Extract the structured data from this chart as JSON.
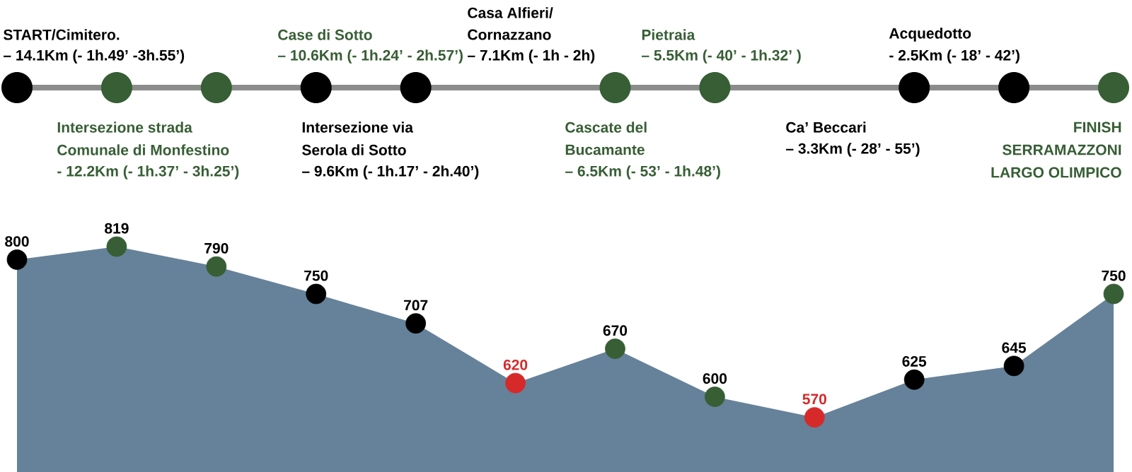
{
  "chart_data": {
    "type": "area",
    "categories": [
      null,
      null,
      null,
      null,
      null,
      null,
      null,
      null,
      null,
      null,
      null,
      null
    ],
    "values": [
      800,
      819,
      790,
      750,
      707,
      620,
      670,
      600,
      570,
      625,
      645,
      750
    ],
    "color": "#66829a",
    "colors": [
      "#000000",
      "#375e35",
      "#375e35",
      "#000000",
      "#000000",
      "#d62a2a",
      "#375e35",
      "#375e35",
      "#d62a2a",
      "#000000",
      "#000000",
      "#375e35"
    ],
    "marker": "circle",
    "data_labels": true,
    "annotations": [
      "START/Cimitero.",
      "– 14.1Km (- 1h.49’ -3h.55’)",
      "Intersezione strada",
      "Comunale di Monfestino",
      "- 12.2Km (- 1h.37’ - 3h.25’)",
      "Case di Sotto",
      "– 10.6Km (- 1h.24’ - 2h.57’)",
      "Intersezione via",
      "Serola di Sotto",
      "– 9.6Km (- 1h.17’ - 2h.40’)",
      "Casa Alfieri/",
      "Cornazzano",
      "– 7.1Km (- 1h  - 2h)",
      "Cascate del",
      "Bucamante",
      "– 6.5Km (- 53’ - 1h.48’)",
      "Pietraia",
      "– 5.5Km (- 40’ - 1h.32’ )",
      "Ca’ Beccari",
      "– 3.3Km (- 28’  - 55’)",
      "Acquedotto",
      "- 2.5Km (- 18’ - 42’)",
      "FINISH",
      "SERRAMAZZONI",
      "LARGO OLIMPICO"
    ]
  }
}
